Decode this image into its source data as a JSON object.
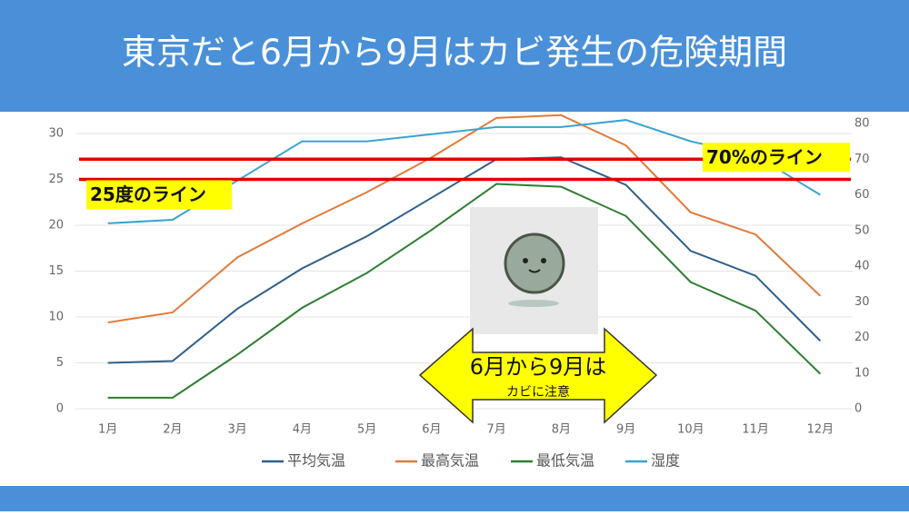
{
  "chart_data": {
    "type": "line",
    "title": "東京だと6月から9月はカビ発生の危険期間",
    "categories": [
      "1月",
      "2月",
      "3月",
      "4月",
      "5月",
      "6月",
      "7月",
      "8月",
      "9月",
      "10月",
      "11月",
      "12月"
    ],
    "series": [
      {
        "name": "平均気温",
        "color": "#2d5f8b",
        "values": [
          5.0,
          5.2,
          10.9,
          15.3,
          18.8,
          23.0,
          27.2,
          27.4,
          24.4,
          17.2,
          14.5,
          7.4
        ]
      },
      {
        "name": "最高気温",
        "color": "#e07b3a",
        "values": [
          9.4,
          10.5,
          16.5,
          20.2,
          23.6,
          27.4,
          31.7,
          32.0,
          28.7,
          21.4,
          19.0,
          12.3
        ]
      },
      {
        "name": "最低気温",
        "color": "#2e7d32",
        "values": [
          1.2,
          1.2,
          5.9,
          11.0,
          14.8,
          19.5,
          24.5,
          24.2,
          21.0,
          13.8,
          10.7,
          3.8
        ]
      },
      {
        "name": "湿度",
        "color": "#3ba3d0",
        "axis": "y2",
        "values": [
          52,
          53,
          64,
          75,
          75,
          77,
          79,
          79,
          81,
          75,
          71,
          60
        ]
      }
    ],
    "ylim": [
      0,
      30
    ],
    "yticks": [
      0,
      5,
      10,
      15,
      20,
      25,
      30
    ],
    "y2lim": [
      0,
      80
    ],
    "y2ticks": [
      0,
      10,
      20,
      30,
      40,
      50,
      60,
      70,
      80
    ],
    "grid": true,
    "reference_lines": [
      {
        "value": 70,
        "axis": "y2",
        "label": "70%のライン",
        "color": "#e00000"
      },
      {
        "value": 25,
        "label": "25度のライン",
        "color": "#e00000"
      }
    ],
    "arrow_text": [
      "6月から9月は",
      "カビに注意"
    ]
  }
}
